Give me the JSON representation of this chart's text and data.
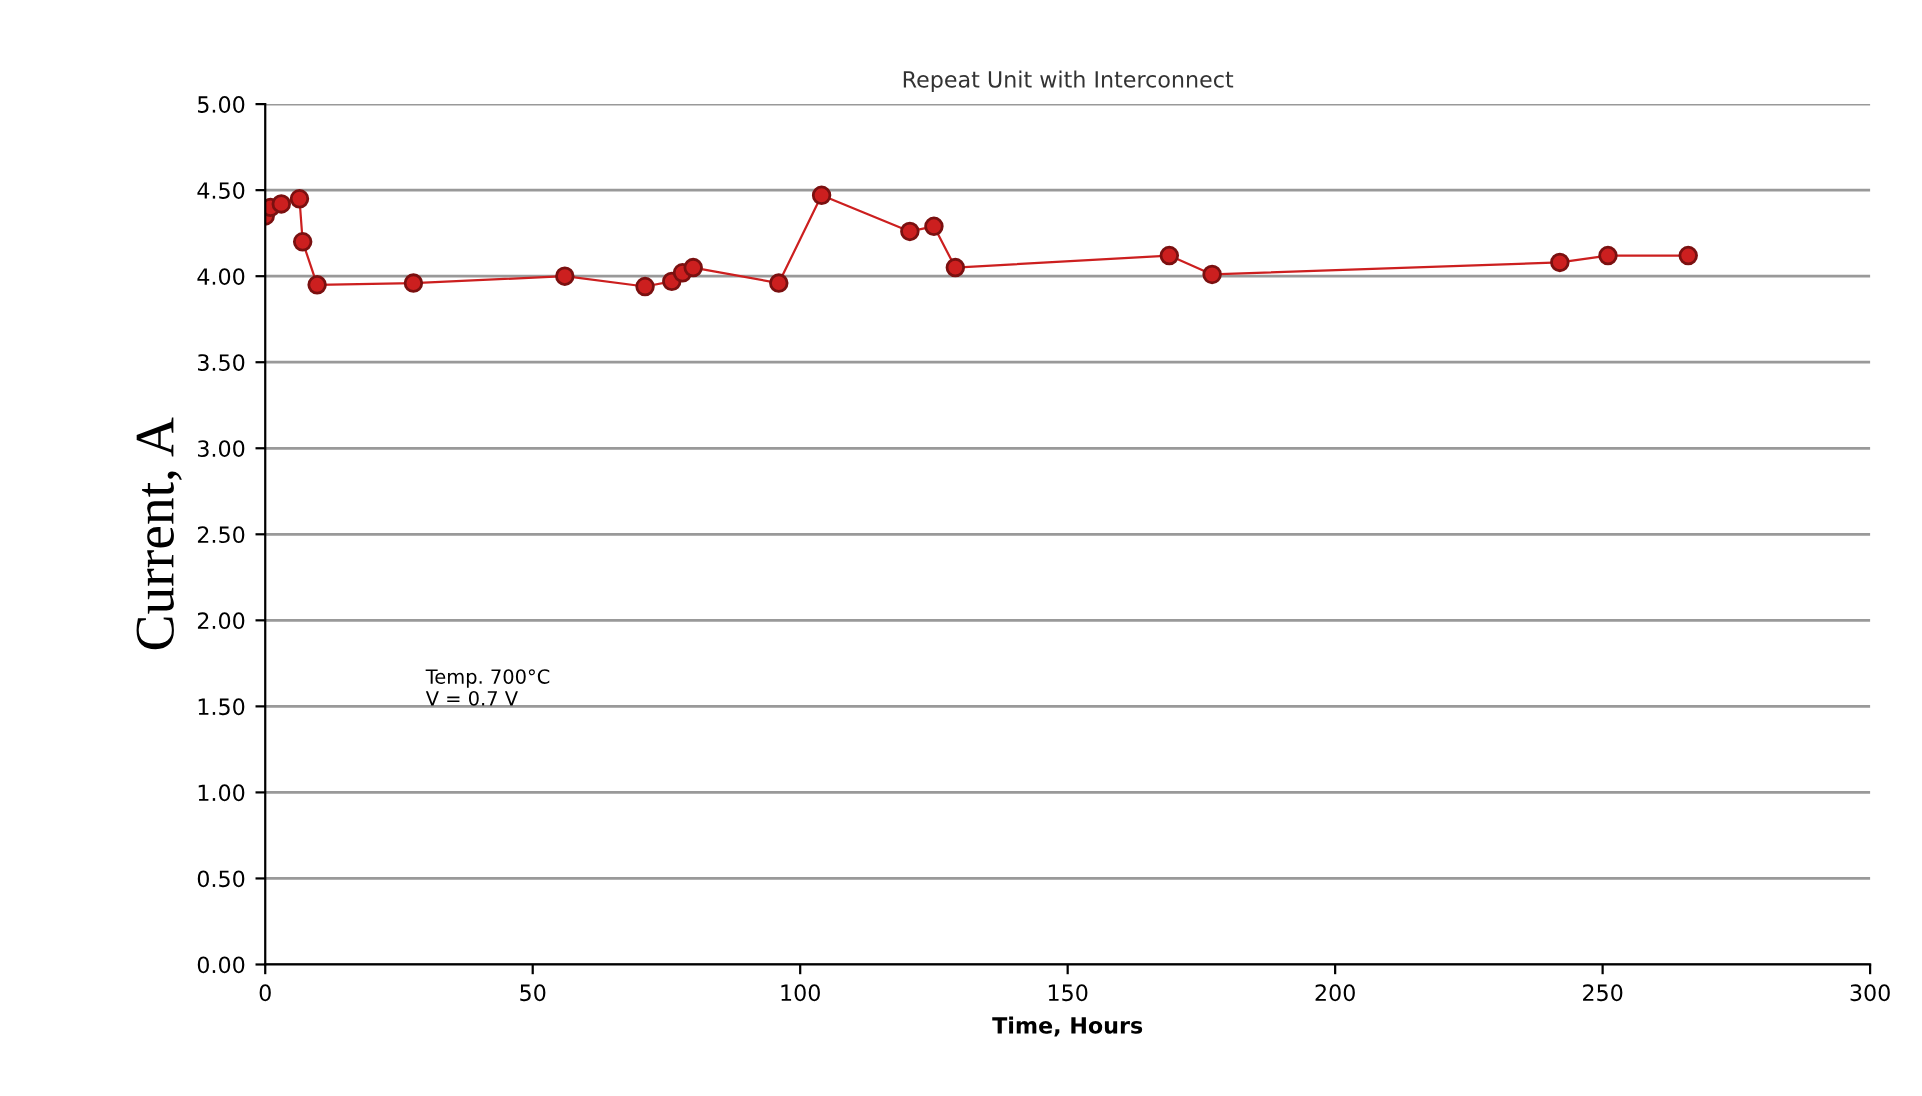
{
  "chart_data": {
    "type": "line",
    "title": "Repeat Unit with Interconnect",
    "xlabel": "Time, Hours",
    "ylabel": "Current, A",
    "x": [
      0,
      1,
      3,
      6.4,
      7,
      9.7,
      27.7,
      56,
      71,
      76,
      78,
      80,
      96,
      104,
      120.5,
      125,
      129,
      169,
      177,
      242,
      251,
      266
    ],
    "series": [
      {
        "color": "#cc1f1f",
        "values": [
          4.35,
          4.4,
          4.42,
          4.45,
          4.2,
          3.95,
          3.96,
          4.0,
          3.94,
          3.97,
          4.02,
          4.05,
          3.96,
          4.47,
          4.26,
          4.29,
          4.05,
          4.12,
          4.01,
          4.08,
          4.12,
          4.12
        ]
      }
    ],
    "xlim": [
      0,
      300
    ],
    "xticks": [
      0,
      50,
      100,
      150,
      200,
      250,
      300
    ],
    "ylim": [
      0,
      5
    ],
    "yticks": [
      {
        "value": 0,
        "label": "0.00"
      },
      {
        "value": 0.5,
        "label": "0.50"
      },
      {
        "value": 1,
        "label": "1.00"
      },
      {
        "value": 1.5,
        "label": "1.50"
      },
      {
        "value": 2,
        "label": "2.00"
      },
      {
        "value": 2.5,
        "label": "2.50"
      },
      {
        "value": 3,
        "label": "3.00"
      },
      {
        "value": 3.5,
        "label": "3.50"
      },
      {
        "value": 4,
        "label": "4.00"
      },
      {
        "value": 4.5,
        "label": "4.50"
      },
      {
        "value": 5,
        "label": "5.00"
      }
    ],
    "annotations": [
      "Temp. 700°C\nV = 0.7 V"
    ],
    "grid": "y",
    "marker": "circle",
    "line_style": "solid",
    "legend": false
  }
}
